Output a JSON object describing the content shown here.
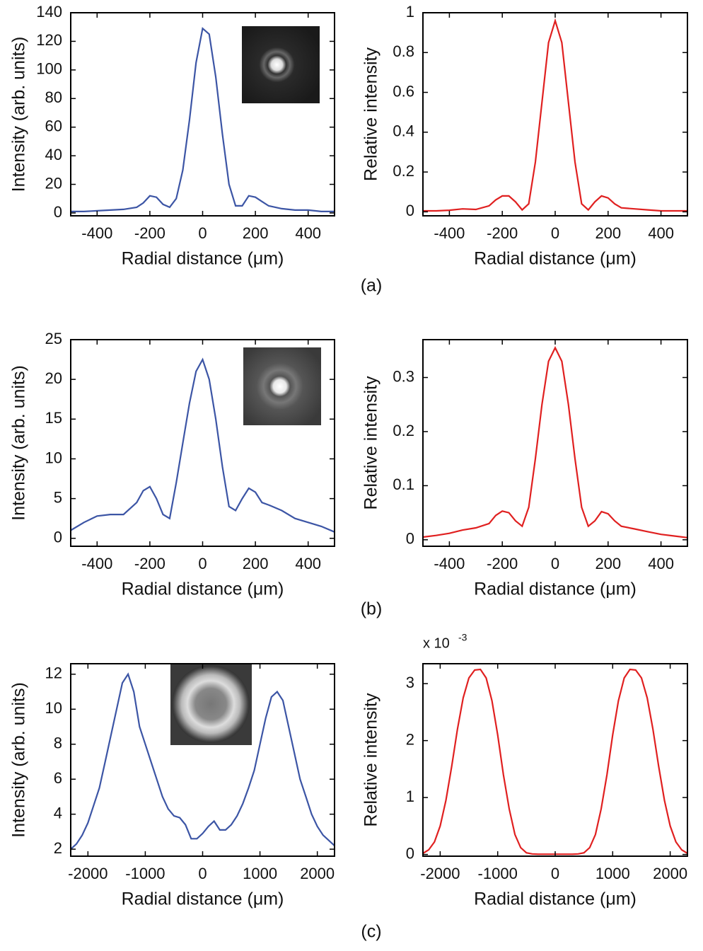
{
  "chart_data": [
    {
      "type": "line",
      "xlabel": "Radial distance (μm)",
      "ylabel": "Intensity (arb. units)",
      "color": "#3c55a5",
      "x": [
        -500,
        -450,
        -400,
        -350,
        -300,
        -250,
        -225,
        -200,
        -175,
        -150,
        -125,
        -100,
        -75,
        -50,
        -25,
        0,
        25,
        50,
        75,
        100,
        125,
        150,
        175,
        200,
        225,
        250,
        300,
        350,
        400,
        450,
        500
      ],
      "values": [
        1,
        1,
        1.5,
        2,
        2.5,
        4,
        7,
        12,
        11,
        6,
        4,
        10,
        30,
        65,
        105,
        129,
        125,
        95,
        55,
        20,
        5,
        5,
        12,
        11,
        8,
        5,
        3,
        2,
        2,
        1,
        1
      ],
      "xlim": [
        -500,
        500
      ],
      "xticks": [
        -400,
        -200,
        0,
        200,
        400
      ],
      "ylim": [
        -2,
        140
      ],
      "yticks": [
        0,
        20,
        40,
        60,
        80,
        100,
        120,
        140
      ]
    },
    {
      "type": "line",
      "xlabel": "Radial distance (μm)",
      "ylabel": "Relative intensity",
      "color": "#e02020",
      "x": [
        -500,
        -450,
        -400,
        -350,
        -300,
        -250,
        -225,
        -200,
        -175,
        -150,
        -125,
        -100,
        -75,
        -50,
        -25,
        0,
        25,
        50,
        75,
        100,
        125,
        150,
        175,
        200,
        225,
        250,
        300,
        350,
        400,
        450,
        500
      ],
      "values": [
        0.005,
        0.005,
        0.008,
        0.015,
        0.012,
        0.03,
        0.06,
        0.08,
        0.08,
        0.05,
        0.01,
        0.04,
        0.25,
        0.55,
        0.85,
        0.96,
        0.85,
        0.55,
        0.25,
        0.04,
        0.01,
        0.05,
        0.08,
        0.07,
        0.04,
        0.02,
        0.015,
        0.01,
        0.005,
        0.005,
        0.005
      ],
      "xlim": [
        -500,
        500
      ],
      "xticks": [
        -400,
        -200,
        0,
        200,
        400
      ],
      "ylim": [
        -0.02,
        1
      ],
      "yticks": [
        0,
        0.2,
        0.4,
        0.6,
        0.8,
        1
      ]
    },
    {
      "type": "line",
      "xlabel": "Radial distance (μm)",
      "ylabel": "Intensity (arb. units)",
      "color": "#3c55a5",
      "x": [
        -500,
        -450,
        -400,
        -350,
        -300,
        -250,
        -225,
        -200,
        -175,
        -150,
        -125,
        -100,
        -75,
        -50,
        -25,
        0,
        25,
        50,
        75,
        100,
        125,
        150,
        175,
        200,
        225,
        250,
        300,
        350,
        400,
        450,
        500
      ],
      "values": [
        1,
        2,
        2.8,
        3,
        3,
        4.5,
        6,
        6.5,
        5,
        3,
        2.5,
        7,
        12,
        17,
        21,
        22.5,
        20,
        15,
        9,
        4,
        3.5,
        5,
        6.3,
        5.8,
        4.5,
        4.2,
        3.5,
        2.5,
        2,
        1.5,
        0.8
      ],
      "xlim": [
        -500,
        500
      ],
      "xticks": [
        -400,
        -200,
        0,
        200,
        400
      ],
      "ylim": [
        -1,
        25
      ],
      "yticks": [
        0,
        5,
        10,
        15,
        20,
        25
      ]
    },
    {
      "type": "line",
      "xlabel": "Radial distance (μm)",
      "ylabel": "Relative intensity",
      "color": "#e02020",
      "x": [
        -500,
        -450,
        -400,
        -350,
        -300,
        -250,
        -225,
        -200,
        -175,
        -150,
        -125,
        -100,
        -75,
        -50,
        -25,
        0,
        25,
        50,
        75,
        100,
        125,
        150,
        175,
        200,
        225,
        250,
        300,
        350,
        400,
        450,
        500
      ],
      "values": [
        0.005,
        0.008,
        0.012,
        0.018,
        0.022,
        0.03,
        0.045,
        0.053,
        0.05,
        0.035,
        0.025,
        0.06,
        0.15,
        0.25,
        0.33,
        0.355,
        0.33,
        0.25,
        0.15,
        0.06,
        0.025,
        0.035,
        0.052,
        0.048,
        0.035,
        0.025,
        0.02,
        0.015,
        0.01,
        0.007,
        0.004
      ],
      "xlim": [
        -500,
        500
      ],
      "xticks": [
        -400,
        -200,
        0,
        200,
        400
      ],
      "ylim": [
        -0.012,
        0.37
      ],
      "yticks": [
        0,
        0.1,
        0.2,
        0.3
      ]
    },
    {
      "type": "line",
      "xlabel": "Radial distance (μm)",
      "ylabel": "Intensity (arb. units)",
      "color": "#3c55a5",
      "x": [
        -2300,
        -2200,
        -2100,
        -2000,
        -1900,
        -1800,
        -1700,
        -1600,
        -1500,
        -1400,
        -1300,
        -1200,
        -1100,
        -1000,
        -900,
        -800,
        -700,
        -600,
        -500,
        -400,
        -300,
        -200,
        -100,
        0,
        100,
        200,
        300,
        400,
        500,
        600,
        700,
        800,
        900,
        1000,
        1100,
        1200,
        1300,
        1400,
        1500,
        1600,
        1700,
        1800,
        1900,
        2000,
        2100,
        2200,
        2300
      ],
      "values": [
        2,
        2.3,
        2.8,
        3.5,
        4.5,
        5.5,
        7,
        8.5,
        10,
        11.5,
        12,
        11,
        9,
        8,
        7,
        6,
        5,
        4.3,
        3.9,
        3.8,
        3.4,
        2.6,
        2.6,
        2.9,
        3.3,
        3.6,
        3.1,
        3.1,
        3.4,
        3.9,
        4.6,
        5.5,
        6.5,
        8,
        9.5,
        10.7,
        11,
        10.5,
        9,
        7.5,
        6,
        5,
        4,
        3.3,
        2.8,
        2.5,
        2.2
      ],
      "xlim": [
        -2300,
        2300
      ],
      "xticks": [
        -2000,
        -1000,
        0,
        1000,
        2000
      ],
      "ylim": [
        1.6,
        12.6
      ],
      "yticks": [
        2,
        4,
        6,
        8,
        10,
        12
      ]
    },
    {
      "type": "line",
      "xlabel": "Radial distance (μm)",
      "ylabel": "Relative intensity",
      "color": "#e02020",
      "y_multiplier": "x 10",
      "y_multiplier_exponent": "-3",
      "x": [
        -2300,
        -2200,
        -2100,
        -2000,
        -1900,
        -1800,
        -1700,
        -1600,
        -1500,
        -1400,
        -1300,
        -1200,
        -1100,
        -1000,
        -900,
        -800,
        -700,
        -600,
        -500,
        -400,
        -300,
        -200,
        -100,
        0,
        100,
        200,
        300,
        400,
        500,
        600,
        700,
        800,
        900,
        1000,
        1100,
        1200,
        1300,
        1400,
        1500,
        1600,
        1700,
        1800,
        1900,
        2000,
        2100,
        2200,
        2300
      ],
      "values": [
        0.02,
        0.08,
        0.22,
        0.5,
        0.95,
        1.55,
        2.2,
        2.75,
        3.1,
        3.24,
        3.25,
        3.1,
        2.7,
        2.1,
        1.4,
        0.8,
        0.35,
        0.12,
        0.03,
        0.01,
        0.005,
        0.005,
        0.005,
        0.005,
        0.005,
        0.005,
        0.005,
        0.01,
        0.03,
        0.12,
        0.35,
        0.8,
        1.4,
        2.1,
        2.7,
        3.1,
        3.25,
        3.24,
        3.1,
        2.75,
        2.2,
        1.55,
        0.95,
        0.5,
        0.22,
        0.08,
        0.02
      ],
      "xlim": [
        -2300,
        2300
      ],
      "xticks": [
        -2000,
        -1000,
        0,
        1000,
        2000
      ],
      "ylim": [
        -0.03,
        3.35
      ],
      "yticks": [
        0,
        1,
        2,
        3
      ]
    }
  ],
  "panel_labels": [
    "(a)",
    "(b)",
    "(c)"
  ]
}
